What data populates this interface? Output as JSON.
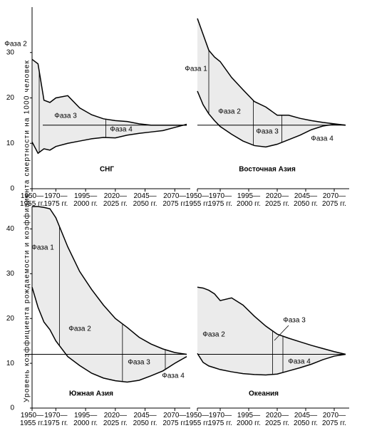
{
  "y_label": "Уровень коэффициента рождаемости и коэффициента смертности на 1000 человек",
  "chart_data": [
    {
      "type": "range_area",
      "title": "СНГ",
      "fill_color": "#ebebeb",
      "x": [
        1950,
        1955,
        1960,
        1965,
        1970,
        1980,
        1990,
        2000,
        2010,
        2020,
        2030,
        2040,
        2050,
        2060,
        2070,
        2080
      ],
      "series": [
        {
          "color": "#000000",
          "values": [
            28.5,
            27.5,
            19.5,
            19,
            20,
            20.5,
            17.8,
            16.3,
            15.4,
            15,
            14.8,
            14.3,
            14,
            14,
            14,
            14
          ]
        },
        {
          "color": "#000000",
          "values": [
            10.3,
            7.8,
            8.8,
            8.5,
            9.3,
            10,
            10.5,
            11,
            11.3,
            11.2,
            11.8,
            12.2,
            12.5,
            12.8,
            13.5,
            14.2
          ]
        }
      ],
      "reference_line": 14,
      "phase_boundaries": [
        1956,
        2012
      ],
      "annotations": [
        "Фаза 2",
        "Фаза 3",
        "Фаза 4"
      ],
      "xlim": [
        1950,
        2080
      ],
      "ylim": [
        0,
        40
      ],
      "xticks": [
        {
          "value": 1950,
          "label": "1950—\n1955 гг."
        },
        {
          "value": 1970,
          "label": "1970—\n1975 гг."
        },
        {
          "value": 1995,
          "label": "1995—\n2000 гг."
        },
        {
          "value": 2020,
          "label": "2020—\n2025 гг."
        },
        {
          "value": 2045,
          "label": "2045—\n2050 гг."
        },
        {
          "value": 2070,
          "label": "2070—\n2075 гг."
        }
      ],
      "yticks": [
        0,
        10,
        20,
        30
      ]
    },
    {
      "type": "range_area",
      "title": "Восточная Азия",
      "fill_color": "#ebebeb",
      "x": [
        1950,
        1955,
        1960,
        1965,
        1970,
        1980,
        1990,
        2000,
        2010,
        2020,
        2030,
        2040,
        2050,
        2060,
        2070,
        2080
      ],
      "series": [
        {
          "color": "#000000",
          "values": [
            37.5,
            34,
            30.5,
            29,
            28,
            24.5,
            21.8,
            19.2,
            18,
            16.2,
            16.2,
            15.5,
            15,
            14.6,
            14.3,
            14
          ]
        },
        {
          "color": "#000000",
          "values": [
            21.5,
            18.5,
            16.5,
            15,
            13.7,
            12,
            10.5,
            9.5,
            9.2,
            9.8,
            10.8,
            11.8,
            13,
            13.8,
            14.2,
            14
          ]
        }
      ],
      "reference_line": 14,
      "phase_boundaries": [
        1960,
        1999,
        2024
      ],
      "annotations": [
        "Фаза 1",
        "Фаза 2",
        "Фаза 3",
        "Фаза 4"
      ],
      "xlim": [
        1950,
        2080
      ],
      "ylim": [
        0,
        40
      ],
      "xticks": [
        {
          "value": 1950,
          "label": "1950—\n1955 гг."
        },
        {
          "value": 1970,
          "label": "1970—\n1975 гг."
        },
        {
          "value": 1995,
          "label": "1995—\n2000 гг."
        },
        {
          "value": 2020,
          "label": "2020—\n2025 гг."
        },
        {
          "value": 2045,
          "label": "2045—\n2050 гг."
        },
        {
          "value": 2070,
          "label": "2070—\n2075 гг."
        }
      ]
    },
    {
      "type": "range_area",
      "title": "Южная Азия",
      "fill_color": "#ebebeb",
      "x": [
        1950,
        1955,
        1960,
        1965,
        1970,
        1980,
        1990,
        2000,
        2010,
        2020,
        2030,
        2040,
        2050,
        2060,
        2070,
        2080
      ],
      "series": [
        {
          "color": "#000000",
          "values": [
            45,
            45,
            44.8,
            44.5,
            42.5,
            36,
            30.5,
            26.5,
            23,
            20,
            18,
            15.8,
            14.3,
            13.2,
            12.4,
            12
          ]
        },
        {
          "color": "#000000",
          "values": [
            27,
            22.5,
            19.2,
            17.5,
            15,
            11.5,
            9.5,
            7.8,
            6.7,
            6.1,
            5.8,
            6.2,
            7.2,
            8.3,
            10,
            11.5
          ]
        }
      ],
      "reference_line": 12,
      "phase_boundaries": [
        1973,
        2026,
        2062
      ],
      "annotations": [
        "Фаза 1",
        "Фаза 2",
        "Фаза 3",
        "Фаза 4"
      ],
      "xlim": [
        1950,
        2080
      ],
      "ylim": [
        0,
        45
      ],
      "xticks": [
        {
          "value": 1950,
          "label": "1950—\n1955 гг."
        },
        {
          "value": 1970,
          "label": "1970—\n1975 гг."
        },
        {
          "value": 1995,
          "label": "1995—\n2000 гг."
        },
        {
          "value": 2020,
          "label": "2020—\n2025 гг."
        },
        {
          "value": 2045,
          "label": "2045—\n2050 гг."
        },
        {
          "value": 2070,
          "label": "2070—\n2075 гг."
        }
      ],
      "yticks": [
        0,
        10,
        20,
        30,
        40
      ]
    },
    {
      "type": "range_area",
      "title": "Океания",
      "fill_color": "#ebebeb",
      "x": [
        1950,
        1955,
        1960,
        1965,
        1970,
        1980,
        1990,
        2000,
        2010,
        2020,
        2030,
        2040,
        2050,
        2060,
        2070,
        2080
      ],
      "series": [
        {
          "color": "#000000",
          "values": [
            27,
            26.8,
            26.3,
            25.5,
            24,
            24.6,
            23,
            20.5,
            18.3,
            16.5,
            15.6,
            14.8,
            14,
            13.3,
            12.6,
            12
          ]
        },
        {
          "color": "#000000",
          "values": [
            12.2,
            10.2,
            9.4,
            9,
            8.6,
            8.1,
            7.7,
            7.5,
            7.4,
            7.6,
            8.3,
            9,
            9.8,
            10.8,
            11.6,
            12
          ]
        }
      ],
      "reference_line": 12,
      "phase_boundaries": [
        2016,
        2025
      ],
      "annotations": [
        "Фаза 2",
        "Фаза 3",
        "Фаза 4"
      ],
      "xlim": [
        1950,
        2080
      ],
      "ylim": [
        0,
        45
      ],
      "xticks": [
        {
          "value": 1950,
          "label": "1950—\n1955 гг."
        },
        {
          "value": 1970,
          "label": "1970—\n1975 гг."
        },
        {
          "value": 1995,
          "label": "1995—\n2000 гг."
        },
        {
          "value": 2020,
          "label": "2020—\n2025 гг."
        },
        {
          "value": 2045,
          "label": "2045—\n2050 гг."
        },
        {
          "value": 2070,
          "label": "2070—\n2075 гг."
        }
      ]
    }
  ]
}
